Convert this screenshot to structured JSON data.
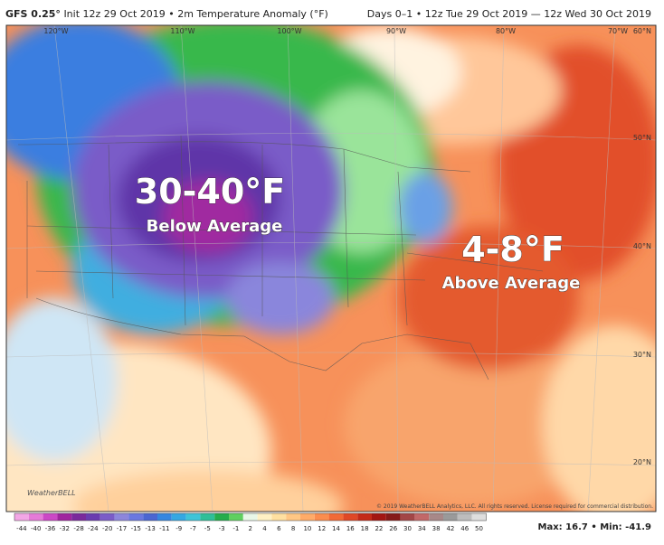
{
  "header": {
    "model": "GFS 0.25°",
    "run": "Init 12z 29 Oct 2019 • 2m Temperature Anomaly (°F)",
    "valid": "Days 0–1 • 12z Tue 29 Oct 2019 — 12z Wed 30 Oct 2019"
  },
  "map": {
    "lon_labels": [
      "120°W",
      "110°W",
      "100°W",
      "90°W",
      "80°W",
      "70°W"
    ],
    "lat_labels": [
      "60°N",
      "50°N",
      "40°N",
      "30°N",
      "20°N"
    ],
    "annotations": [
      {
        "headline": "30-40°F",
        "text": "Below Average"
      },
      {
        "headline": "4-8°F",
        "text": "Above Average"
      }
    ],
    "logo": "WeatherBELL",
    "copyright": "© 2019 WeatherBELL Analytics, LLC. All rights reserved. License required for commercial distribution."
  },
  "colorbar": {
    "ticks": [
      -44,
      -40,
      -36,
      -32,
      -28,
      -24,
      -20,
      -17,
      -15,
      -13,
      -11,
      -9,
      -7,
      -5,
      -3,
      -1,
      2,
      4,
      6,
      8,
      10,
      12,
      14,
      16,
      18,
      22,
      26,
      30,
      34,
      38,
      42,
      46,
      50
    ],
    "colors": [
      "#f3a6e6",
      "#e57ad8",
      "#cc48c6",
      "#a0259f",
      "#7a2a9c",
      "#6a3cb0",
      "#7b5cc8",
      "#8d86dc",
      "#6a78e0",
      "#4b66d2",
      "#3587e0",
      "#35a8e2",
      "#3fc4d8",
      "#2fbf98",
      "#24ad4c",
      "#5fd060",
      "#e8f7e8",
      "#fff1c4",
      "#ffe0a0",
      "#ffc784",
      "#ffab68",
      "#fb8d4e",
      "#f26a36",
      "#e04826",
      "#c42a18",
      "#a31612",
      "#861a18",
      "#a34646",
      "#c26868",
      "#a88888",
      "#9a9a9a",
      "#bdbdbd",
      "#dedede"
    ],
    "summary": "Max: 16.7 • Min: -41.9"
  }
}
